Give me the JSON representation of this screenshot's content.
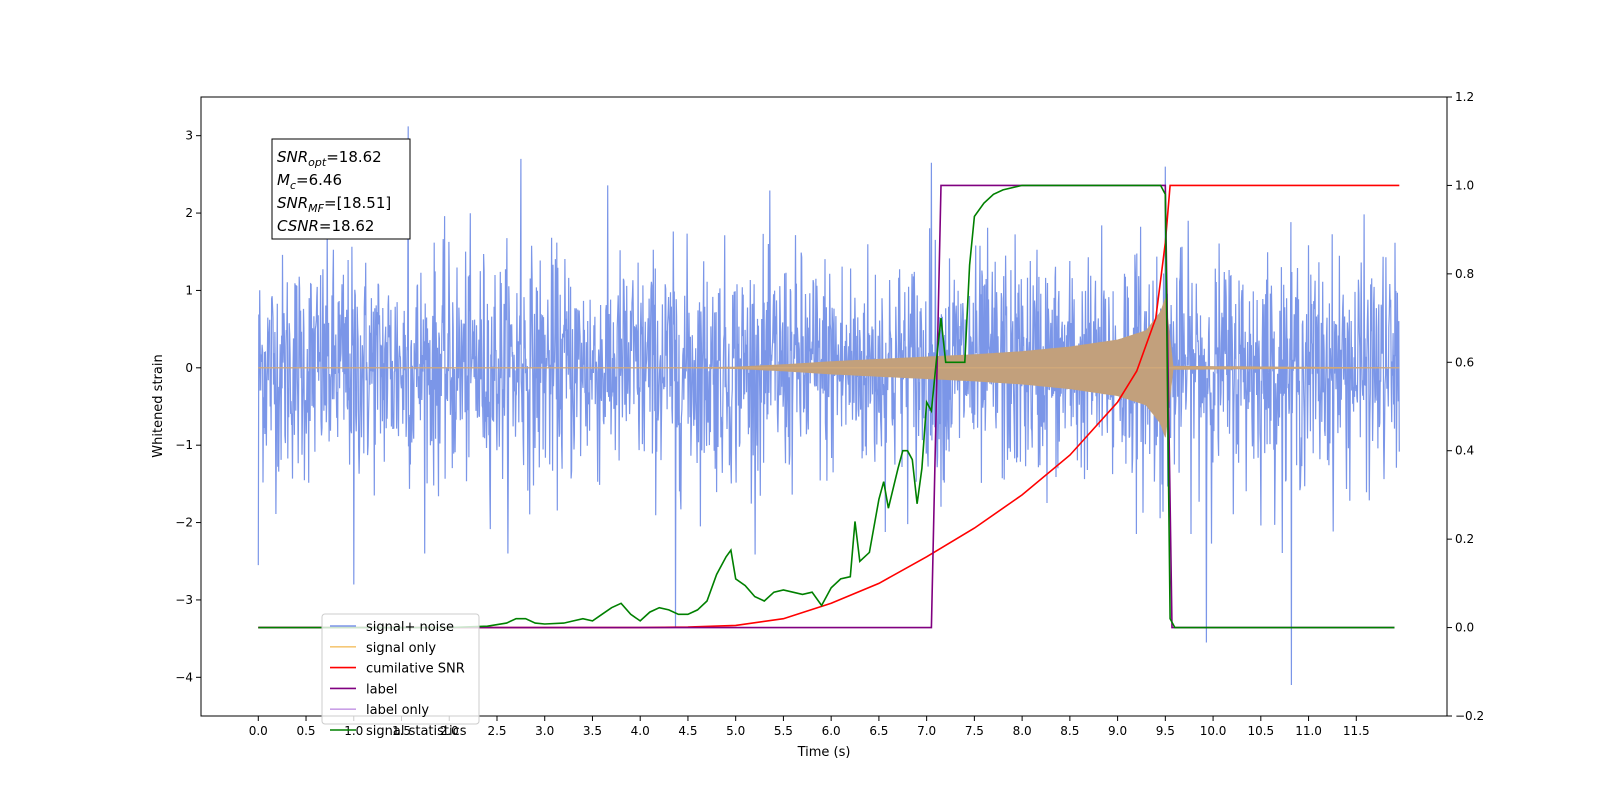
{
  "chart_data": {
    "type": "line",
    "title": "",
    "xlabel": "Time (s)",
    "ylabel": "Whitened strain",
    "ylabel_right": "",
    "xlim": [
      -0.6,
      12.45
    ],
    "ylim": [
      -4.5,
      3.5
    ],
    "ylim_right": [
      -0.2,
      1.2
    ],
    "x_ticks": [
      "0.0",
      "0.5",
      "1.0",
      "1.5",
      "2.0",
      "2.5",
      "3.0",
      "3.5",
      "4.0",
      "4.5",
      "5.0",
      "5.5",
      "6.0",
      "6.5",
      "7.0",
      "7.5",
      "8.0",
      "8.5",
      "9.0",
      "9.5",
      "10.0",
      "10.5",
      "11.0",
      "11.5"
    ],
    "y_ticks": [
      "3",
      "2",
      "1",
      "0",
      "−1",
      "−2",
      "−3",
      "−4"
    ],
    "y_ticks_right": [
      "1.2",
      "1.0",
      "0.8",
      "0.6",
      "0.4",
      "0.2",
      "0.0",
      "−0.2"
    ],
    "noise_amplitude_typical": 1.5,
    "noise_peaks": [
      {
        "x": 0.0,
        "y": -2.55
      },
      {
        "x": 1.0,
        "y": -2.8
      },
      {
        "x": 1.57,
        "y": 3.12
      },
      {
        "x": 2.75,
        "y": 2.7
      },
      {
        "x": 4.37,
        "y": -3.35
      },
      {
        "x": 7.05,
        "y": 2.65
      },
      {
        "x": 9.5,
        "y": 2.6
      },
      {
        "x": 9.93,
        "y": -3.55
      },
      {
        "x": 10.82,
        "y": -4.1
      }
    ],
    "signal_envelope": {
      "x": [
        0.0,
        4.5,
        5.0,
        5.5,
        6.0,
        6.5,
        7.0,
        7.5,
        8.0,
        8.5,
        9.0,
        9.3,
        9.45,
        9.5,
        9.58,
        11.95
      ],
      "amp": [
        0.0,
        0.0,
        0.01,
        0.04,
        0.08,
        0.11,
        0.14,
        0.17,
        0.21,
        0.27,
        0.36,
        0.48,
        0.72,
        0.9,
        0.02,
        0.0
      ]
    },
    "series": [
      {
        "name": "signal+ noise",
        "color": "#7b96e8",
        "axis": "left"
      },
      {
        "name": "signal only",
        "color": "#f5b86c",
        "axis": "left"
      },
      {
        "name": "cumilative SNR",
        "color": "#ff0000",
        "axis": "right",
        "x": [
          0.0,
          4.0,
          4.5,
          5.0,
          5.5,
          6.0,
          6.5,
          7.0,
          7.5,
          8.0,
          8.5,
          9.0,
          9.2,
          9.4,
          9.5,
          9.55,
          11.95
        ],
        "y": [
          0.0,
          0.0,
          0.001,
          0.005,
          0.02,
          0.055,
          0.1,
          0.16,
          0.225,
          0.3,
          0.39,
          0.51,
          0.58,
          0.7,
          0.87,
          1.0,
          1.0
        ]
      },
      {
        "name": "label",
        "color": "#800080",
        "axis": "right",
        "x": [
          0.0,
          7.05,
          7.15,
          9.5,
          9.57,
          11.9
        ],
        "y": [
          0.0,
          0.0,
          1.0,
          1.0,
          0.0,
          0.0
        ]
      },
      {
        "name": "label only",
        "color": "#800080",
        "axis": "right"
      },
      {
        "name": "signal statistics",
        "color": "#008000",
        "axis": "right",
        "x": [
          0.0,
          2.0,
          2.4,
          2.6,
          2.7,
          2.8,
          2.9,
          3.0,
          3.2,
          3.3,
          3.4,
          3.5,
          3.6,
          3.7,
          3.8,
          3.9,
          4.0,
          4.1,
          4.2,
          4.3,
          4.4,
          4.5,
          4.6,
          4.7,
          4.8,
          4.9,
          4.95,
          5.0,
          5.1,
          5.2,
          5.3,
          5.4,
          5.5,
          5.6,
          5.7,
          5.8,
          5.9,
          6.0,
          6.1,
          6.2,
          6.25,
          6.3,
          6.4,
          6.5,
          6.55,
          6.6,
          6.7,
          6.75,
          6.8,
          6.85,
          6.9,
          6.95,
          7.0,
          7.05,
          7.1,
          7.15,
          7.2,
          7.25,
          7.3,
          7.35,
          7.4,
          7.45,
          7.5,
          7.6,
          7.7,
          7.8,
          8.0,
          9.45,
          9.5,
          9.55,
          9.6,
          11.9
        ],
        "y": [
          0.0,
          0.0,
          0.003,
          0.01,
          0.02,
          0.02,
          0.01,
          0.008,
          0.01,
          0.015,
          0.02,
          0.015,
          0.03,
          0.045,
          0.055,
          0.03,
          0.015,
          0.035,
          0.045,
          0.04,
          0.03,
          0.03,
          0.04,
          0.06,
          0.12,
          0.16,
          0.175,
          0.11,
          0.095,
          0.07,
          0.06,
          0.08,
          0.085,
          0.08,
          0.075,
          0.08,
          0.05,
          0.09,
          0.11,
          0.115,
          0.24,
          0.15,
          0.17,
          0.29,
          0.33,
          0.27,
          0.36,
          0.4,
          0.4,
          0.38,
          0.28,
          0.36,
          0.51,
          0.49,
          0.6,
          0.7,
          0.6,
          0.6,
          0.6,
          0.6,
          0.6,
          0.82,
          0.93,
          0.96,
          0.98,
          0.99,
          1.0,
          1.0,
          0.98,
          0.02,
          0.0,
          0.0
        ]
      }
    ],
    "legend_position": "lower-left",
    "legend": [
      "signal+ noise",
      "signal only",
      "cumilative SNR",
      "label",
      "label only",
      "signal statistics"
    ],
    "annotation": [
      {
        "var": "SNR",
        "sub": "opt",
        "rest": "=18.62"
      },
      {
        "var": "M",
        "sub": "c",
        "rest": "=6.46"
      },
      {
        "var": "SNR",
        "sub": "MF",
        "rest": "=[18.51]"
      },
      {
        "var": "CSNR",
        "sub": "",
        "rest": "=18.62"
      }
    ]
  }
}
